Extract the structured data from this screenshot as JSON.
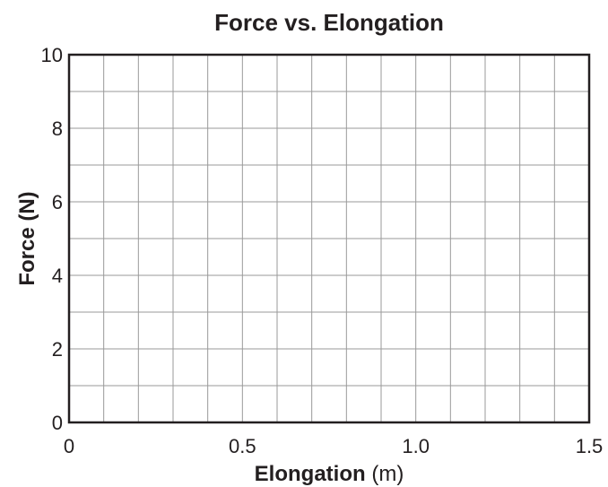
{
  "chart_data": {
    "type": "scatter",
    "title": "Force vs. Elongation",
    "xlabel": "Elongation",
    "xlabel_unit": "(m)",
    "ylabel": "Force (N)",
    "xlim": [
      0,
      1.5
    ],
    "ylim": [
      0,
      10
    ],
    "x_ticks": [
      "0",
      "0.5",
      "1.0",
      "1.5"
    ],
    "y_ticks": [
      "0",
      "2",
      "4",
      "6",
      "8",
      "10"
    ],
    "x_minor_step": 0.1,
    "y_minor_step": 1,
    "grid": true,
    "series": []
  },
  "colors": {
    "grid": "#9a9a9a",
    "axis": "#231f20",
    "text": "#231f20"
  }
}
